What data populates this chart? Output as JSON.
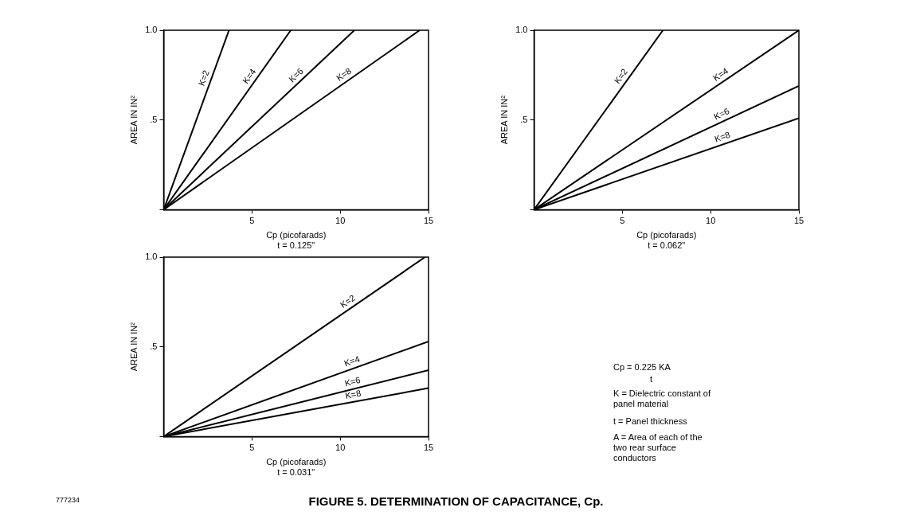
{
  "chart_data": [
    {
      "type": "line",
      "xlabel": "Cp (picofarads)",
      "subtitle": "t = 0.125\"",
      "ylabel": "AREA IN IN²",
      "xlim": [
        0,
        15
      ],
      "ylim": [
        0,
        1
      ],
      "xticks": [
        5,
        10,
        15
      ],
      "yticks": [
        {
          "value": 0,
          "label": null
        },
        {
          "value": 0.5,
          "label": ".5"
        },
        {
          "value": 1,
          "label": "1.0"
        }
      ],
      "legend": false,
      "marker": "none",
      "line_style": "solid",
      "series": [
        {
          "name": "K=2",
          "color": "#000000",
          "x": [
            0,
            3.7
          ],
          "values": [
            0,
            1
          ]
        },
        {
          "name": "K=4",
          "color": "#000000",
          "x": [
            0,
            7.2
          ],
          "values": [
            0,
            1
          ]
        },
        {
          "name": "K=6",
          "color": "#000000",
          "x": [
            0,
            10.8
          ],
          "values": [
            0,
            1
          ]
        },
        {
          "name": "K=8",
          "color": "#000000",
          "x": [
            0,
            14.5
          ],
          "values": [
            0,
            1
          ]
        }
      ]
    },
    {
      "type": "line",
      "xlabel": "Cp (picofarads)",
      "subtitle": "t = 0.062\"",
      "ylabel": "AREA IN IN²",
      "xlim": [
        0,
        15
      ],
      "ylim": [
        0,
        1
      ],
      "xticks": [
        5,
        10,
        15
      ],
      "yticks": [
        {
          "value": 0,
          "label": null
        },
        {
          "value": 0.5,
          "label": ".5"
        },
        {
          "value": 1,
          "label": "1.0"
        }
      ],
      "legend": false,
      "marker": "none",
      "line_style": "solid",
      "series": [
        {
          "name": "K=2",
          "color": "#000000",
          "x": [
            0,
            7.3
          ],
          "values": [
            0,
            1
          ]
        },
        {
          "name": "K=4",
          "color": "#000000",
          "x": [
            0,
            15
          ],
          "values": [
            0,
            1
          ]
        },
        {
          "name": "K=6",
          "color": "#000000",
          "x": [
            0,
            15
          ],
          "values": [
            0,
            0.69
          ]
        },
        {
          "name": "K=8",
          "color": "#000000",
          "x": [
            0,
            15
          ],
          "values": [
            0,
            0.51
          ]
        }
      ]
    },
    {
      "type": "line",
      "xlabel": "Cp (picofarads)",
      "subtitle": "t = 0.031\"",
      "ylabel": "AREA IN IN²",
      "xlim": [
        0,
        15
      ],
      "ylim": [
        0,
        1
      ],
      "xticks": [
        5,
        10,
        15
      ],
      "yticks": [
        {
          "value": 0,
          "label": null
        },
        {
          "value": 0.5,
          "label": ".5"
        },
        {
          "value": 1,
          "label": "1.0"
        }
      ],
      "legend": false,
      "marker": "none",
      "line_style": "solid",
      "series": [
        {
          "name": "K=2",
          "color": "#000000",
          "x": [
            0,
            14.8
          ],
          "values": [
            0,
            1
          ]
        },
        {
          "name": "K=4",
          "color": "#000000",
          "x": [
            0,
            15
          ],
          "values": [
            0,
            0.53
          ]
        },
        {
          "name": "K=6",
          "color": "#000000",
          "x": [
            0,
            15
          ],
          "values": [
            0,
            0.37
          ]
        },
        {
          "name": "K=8",
          "color": "#000000",
          "x": [
            0,
            15
          ],
          "values": [
            0,
            0.27
          ]
        }
      ]
    },
    {
      "type": "other",
      "annotations": [
        "Cp = 0.225 KA",
        "t",
        "K = Dielectric constant of panel material",
        "t = Panel thickness",
        "A = Area of each of the two rear surface conductors",
        "FIGURE 5. DETERMINATION OF CAPACITANCE, Cp.",
        "777234"
      ]
    }
  ]
}
